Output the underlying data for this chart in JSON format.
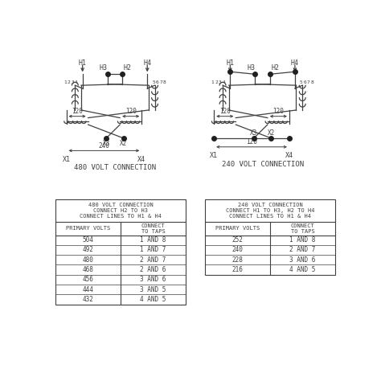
{
  "background_color": "#ffffff",
  "line_color": "#404040",
  "dot_color": "#202020",
  "table_480": {
    "header": "480 VOLT CONNECTION\nCONNECT H2 TO H3\nCONNECT LINES TO H1 & H4",
    "col_headers": [
      "PRIMARY VOLTS",
      "CONNECT\nTO TAPS"
    ],
    "rows": [
      [
        "504",
        "1 AND 8"
      ],
      [
        "492",
        "1 AND 7"
      ],
      [
        "480",
        "2 AND 7"
      ],
      [
        "468",
        "2 AND 6"
      ],
      [
        "456",
        "3 AND 6"
      ],
      [
        "444",
        "3 AND 5"
      ],
      [
        "432",
        "4 AND 5"
      ]
    ]
  },
  "table_240": {
    "header": "240 VOLT CONNECTION\nCONNECT H1 TO H3, H2 TO H4\nCONNECT LINES TO H1 & H4",
    "col_headers": [
      "PRIMARY VOLTS",
      "CONNECT\nTO TAPS"
    ],
    "rows": [
      [
        "252",
        "1 AND 8"
      ],
      [
        "240",
        "2 AND 7"
      ],
      [
        "228",
        "3 AND 6"
      ],
      [
        "216",
        "4 AND 5"
      ]
    ]
  },
  "label_480": "480 VOLT CONNECTION",
  "label_240": "240 VOLT CONNECTION"
}
